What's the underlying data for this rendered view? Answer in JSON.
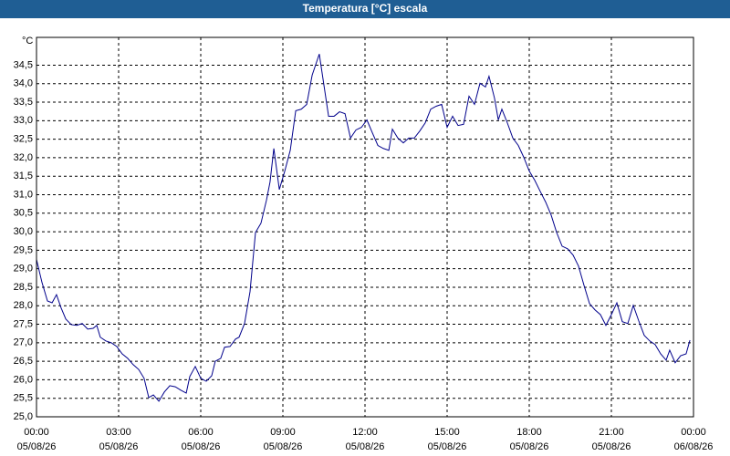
{
  "chart_data": {
    "type": "line",
    "title": "Temperatura [°C] escala",
    "y_unit": "°C",
    "color": "#00008b",
    "grid": true,
    "xlim": [
      0,
      24
    ],
    "xticks": [
      {
        "value": 0,
        "label": "00:00"
      },
      {
        "value": 3,
        "label": "03:00"
      },
      {
        "value": 6,
        "label": "06:00"
      },
      {
        "value": 9,
        "label": "09:00"
      },
      {
        "value": 12,
        "label": "12:00"
      },
      {
        "value": 15,
        "label": "15:00"
      },
      {
        "value": 18,
        "label": "18:00"
      },
      {
        "value": 21,
        "label": "21:00"
      },
      {
        "value": 24,
        "label": "00:00"
      }
    ],
    "xtick_dates": [
      "05/08/26",
      "05/08/26",
      "05/08/26",
      "05/08/26",
      "05/08/26",
      "05/08/26",
      "05/08/26",
      "05/08/26",
      "06/08/26"
    ],
    "ylim": [
      25,
      35.25
    ],
    "yticks": [
      {
        "value": 25,
        "label": "25,0"
      },
      {
        "value": 25.5,
        "label": "25,5"
      },
      {
        "value": 26,
        "label": "26,0"
      },
      {
        "value": 26.5,
        "label": "26,5"
      },
      {
        "value": 27,
        "label": "27,0"
      },
      {
        "value": 27.5,
        "label": "27,5"
      },
      {
        "value": 28,
        "label": "28,0"
      },
      {
        "value": 28.5,
        "label": "28,5"
      },
      {
        "value": 29,
        "label": "29,0"
      },
      {
        "value": 29.5,
        "label": "29,5"
      },
      {
        "value": 30,
        "label": "30,0"
      },
      {
        "value": 30.5,
        "label": "30,5"
      },
      {
        "value": 31,
        "label": "31,0"
      },
      {
        "value": 31.5,
        "label": "31,5"
      },
      {
        "value": 32,
        "label": "32,0"
      },
      {
        "value": 32.5,
        "label": "32,5"
      },
      {
        "value": 33,
        "label": "33,0"
      },
      {
        "value": 33.5,
        "label": "33,5"
      },
      {
        "value": 34,
        "label": "34,0"
      },
      {
        "value": 34.5,
        "label": "34,5"
      }
    ],
    "x": [
      0,
      0.2,
      0.4,
      0.57,
      0.73,
      0.9,
      1.07,
      1.27,
      1.47,
      1.67,
      1.87,
      2.07,
      2.2,
      2.33,
      2.53,
      2.73,
      2.93,
      3.13,
      3.33,
      3.53,
      3.73,
      3.93,
      4.1,
      4.27,
      4.47,
      4.67,
      4.87,
      5.07,
      5.27,
      5.47,
      5.6,
      5.8,
      6.0,
      6.2,
      6.4,
      6.53,
      6.73,
      6.87,
      7.07,
      7.27,
      7.4,
      7.6,
      7.8,
      8.0,
      8.2,
      8.4,
      8.53,
      8.67,
      8.87,
      9.07,
      9.27,
      9.47,
      9.67,
      9.87,
      10.07,
      10.33,
      10.53,
      10.67,
      10.87,
      11.07,
      11.27,
      11.47,
      11.67,
      11.87,
      12.07,
      12.27,
      12.47,
      12.67,
      12.87,
      13.0,
      13.2,
      13.4,
      13.6,
      13.8,
      14.0,
      14.2,
      14.4,
      14.6,
      14.8,
      15.0,
      15.2,
      15.4,
      15.6,
      15.8,
      16.0,
      16.2,
      16.4,
      16.53,
      16.73,
      16.87,
      17.0,
      17.2,
      17.4,
      17.6,
      17.8,
      18.0,
      18.2,
      18.4,
      18.6,
      18.8,
      19.0,
      19.2,
      19.4,
      19.6,
      19.8,
      20.0,
      20.2,
      20.4,
      20.6,
      20.8,
      21.0,
      21.2,
      21.4,
      21.6,
      21.8,
      22.0,
      22.2,
      22.4,
      22.6,
      22.8,
      23.0,
      23.13,
      23.33,
      23.53,
      23.73,
      23.87
    ],
    "values": [
      29.25,
      28.63,
      28.13,
      28.08,
      28.3,
      27.94,
      27.64,
      27.49,
      27.47,
      27.52,
      27.37,
      27.39,
      27.47,
      27.15,
      27.05,
      27.0,
      26.9,
      26.7,
      26.58,
      26.41,
      26.28,
      26.04,
      25.52,
      25.59,
      25.42,
      25.67,
      25.84,
      25.81,
      25.72,
      25.64,
      26.09,
      26.36,
      26.04,
      25.96,
      26.11,
      26.5,
      26.58,
      26.88,
      26.9,
      27.1,
      27.15,
      27.52,
      28.38,
      29.98,
      30.23,
      30.85,
      31.34,
      32.25,
      31.14,
      31.64,
      32.2,
      33.27,
      33.31,
      33.44,
      34.23,
      34.8,
      33.81,
      33.12,
      33.12,
      33.24,
      33.19,
      32.53,
      32.75,
      32.82,
      33.02,
      32.67,
      32.33,
      32.25,
      32.2,
      32.77,
      32.53,
      32.4,
      32.53,
      32.53,
      32.72,
      32.94,
      33.31,
      33.39,
      33.44,
      32.82,
      33.12,
      32.87,
      32.9,
      33.66,
      33.44,
      34.01,
      33.91,
      34.2,
      33.61,
      33.02,
      33.31,
      32.94,
      32.53,
      32.33,
      32.01,
      31.64,
      31.39,
      31.09,
      30.8,
      30.45,
      29.98,
      29.61,
      29.54,
      29.37,
      29.07,
      28.55,
      28.06,
      27.89,
      27.76,
      27.47,
      27.76,
      28.08,
      27.57,
      27.52,
      28.01,
      27.59,
      27.2,
      27.05,
      26.95,
      26.7,
      26.53,
      26.8,
      26.46,
      26.65,
      26.7,
      27.07
    ]
  }
}
